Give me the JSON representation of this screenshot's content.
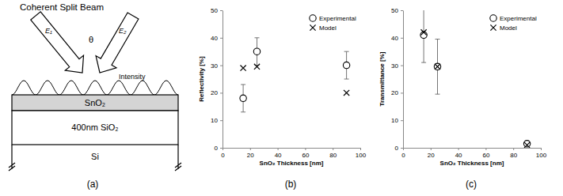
{
  "diagram": {
    "beam_label": "Coherent Split Beam",
    "field_labels": [
      "E₁",
      "E₂"
    ],
    "angle_label": "θ",
    "intensity_label": "Intensity",
    "layers": [
      "SnO₂",
      "400nm SiO₂",
      "Si"
    ],
    "panel_label": "(a)"
  },
  "chart_data": [
    {
      "type": "scatter",
      "panel_label": "(b)",
      "x_label": "SnO₂ Thickness [nm]",
      "y_label": "Reflectivity [%]",
      "xlim": [
        0,
        100
      ],
      "ylim": [
        0,
        50
      ],
      "xticks": [
        0,
        20,
        40,
        60,
        80,
        100
      ],
      "yticks": [
        0,
        10,
        20,
        30,
        40,
        50
      ],
      "legend": "upper right",
      "series": [
        {
          "name": "Experimental",
          "marker": "circle",
          "color": "#000000",
          "x": [
            15,
            25,
            90
          ],
          "values": [
            18,
            35,
            30
          ],
          "errors": [
            5,
            5,
            5
          ]
        },
        {
          "name": "Model",
          "marker": "x",
          "color": "#000000",
          "x": [
            15,
            25,
            90
          ],
          "values": [
            29,
            29.5,
            20
          ]
        }
      ]
    },
    {
      "type": "scatter",
      "panel_label": "(c)",
      "x_label": "SnO₂ Thickness [nm]",
      "y_label": "Transmittance [%]",
      "xlim": [
        0,
        100
      ],
      "ylim": [
        0,
        50
      ],
      "xticks": [
        0,
        20,
        40,
        60,
        80,
        100
      ],
      "yticks": [
        0,
        10,
        20,
        30,
        40,
        50
      ],
      "legend": "upper right",
      "series": [
        {
          "name": "Experimental",
          "marker": "circle",
          "color": "#000000",
          "x": [
            15,
            25,
            90
          ],
          "values": [
            41,
            29.5,
            1.5
          ],
          "errors": [
            10,
            10,
            0.5
          ]
        },
        {
          "name": "Model",
          "marker": "x",
          "color": "#000000",
          "x": [
            15,
            25,
            90
          ],
          "values": [
            42,
            29.5,
            1
          ]
        }
      ]
    }
  ]
}
